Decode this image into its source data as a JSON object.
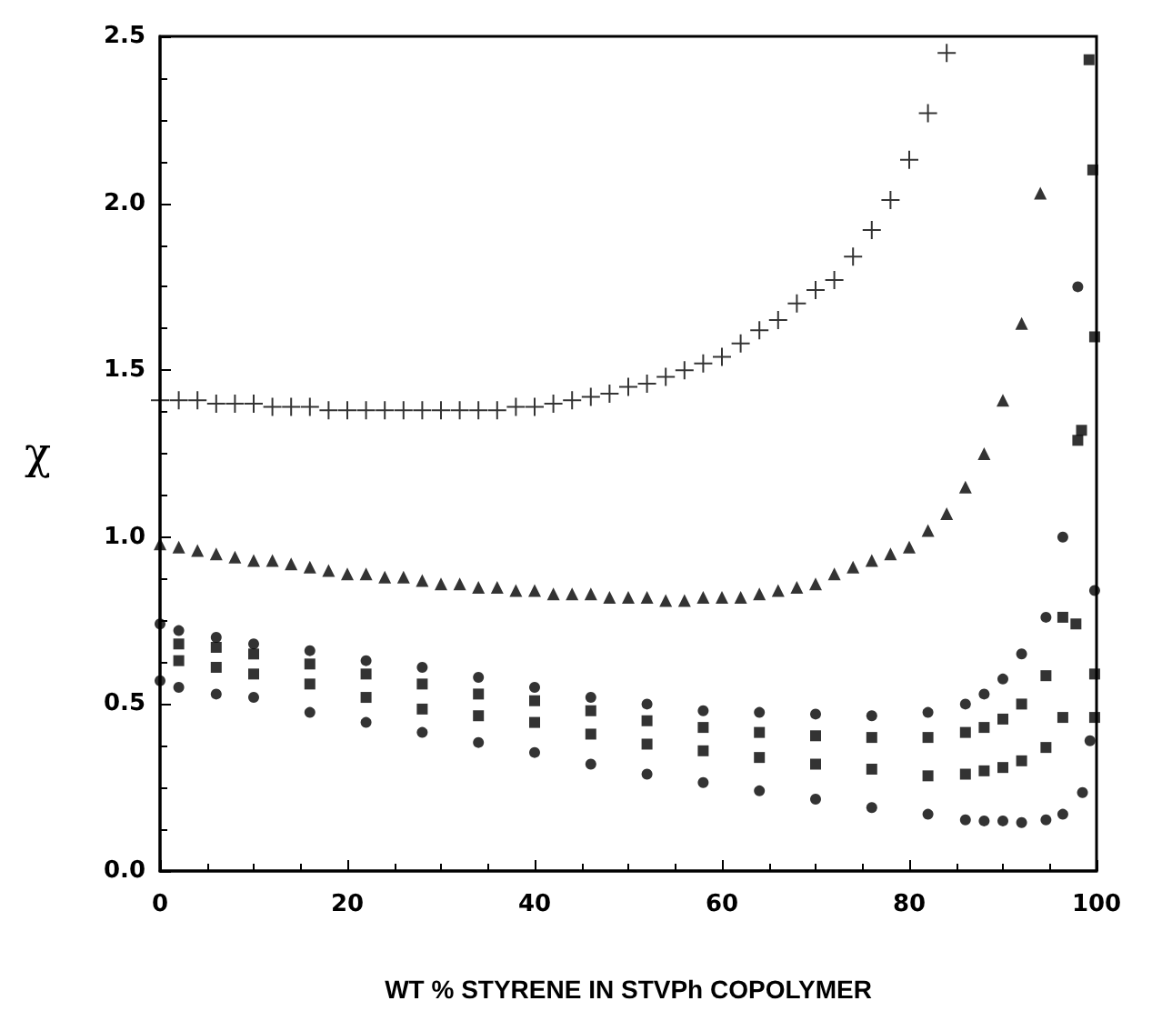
{
  "chart_data": {
    "type": "scatter",
    "xlabel": "WT % STYRENE IN STVPh COPOLYMER",
    "ylabel": "χ",
    "xlim": [
      0,
      100
    ],
    "ylim": [
      0,
      2.5
    ],
    "xticks": [
      0,
      20,
      40,
      60,
      80,
      100
    ],
    "yticks": [
      {
        "value": 0,
        "label": "0.0"
      },
      {
        "value": 0.5,
        "label": "0.5"
      },
      {
        "value": 1,
        "label": "1.0"
      },
      {
        "value": 1.5,
        "label": "1.5"
      },
      {
        "value": 2,
        "label": "2.0"
      },
      {
        "value": 2.5,
        "label": "2.5"
      }
    ],
    "grid": false,
    "series": [
      {
        "marker": "cross",
        "color": "#000000",
        "x": [
          0,
          2,
          4,
          6,
          8,
          10,
          12,
          14,
          16,
          18,
          20,
          22,
          24,
          26,
          28,
          30,
          32,
          34,
          36,
          38,
          40,
          42,
          44,
          46,
          48,
          50,
          52,
          54,
          56,
          58,
          60,
          62,
          64,
          66,
          68,
          70,
          72,
          74,
          76,
          78,
          80,
          82,
          84
        ],
        "values": [
          1.41,
          1.41,
          1.41,
          1.4,
          1.4,
          1.4,
          1.39,
          1.39,
          1.39,
          1.38,
          1.38,
          1.38,
          1.38,
          1.38,
          1.38,
          1.38,
          1.38,
          1.38,
          1.38,
          1.39,
          1.39,
          1.4,
          1.41,
          1.42,
          1.43,
          1.45,
          1.46,
          1.48,
          1.5,
          1.52,
          1.54,
          1.58,
          1.62,
          1.65,
          1.7,
          1.74,
          1.77,
          1.84,
          1.92,
          2.01,
          2.13,
          2.27,
          2.45
        ]
      },
      {
        "marker": "triangle",
        "color": "#000000",
        "x": [
          0,
          2,
          4,
          6,
          8,
          10,
          12,
          14,
          16,
          18,
          20,
          22,
          24,
          26,
          28,
          30,
          32,
          34,
          36,
          38,
          40,
          42,
          44,
          46,
          48,
          50,
          52,
          54,
          56,
          58,
          60,
          62,
          64,
          66,
          68,
          70,
          72,
          74,
          76,
          78,
          80,
          82,
          84,
          86,
          88,
          90,
          92,
          94
        ],
        "values": [
          0.98,
          0.97,
          0.96,
          0.95,
          0.94,
          0.93,
          0.93,
          0.92,
          0.91,
          0.9,
          0.89,
          0.89,
          0.88,
          0.88,
          0.87,
          0.86,
          0.86,
          0.85,
          0.85,
          0.84,
          0.84,
          0.83,
          0.83,
          0.83,
          0.82,
          0.82,
          0.82,
          0.81,
          0.81,
          0.82,
          0.82,
          0.82,
          0.83,
          0.84,
          0.85,
          0.86,
          0.89,
          0.91,
          0.93,
          0.95,
          0.97,
          1.02,
          1.07,
          1.15,
          1.25,
          1.41,
          1.64,
          2.03
        ]
      },
      {
        "marker": "circle",
        "color": "#000000",
        "x": [
          0,
          2,
          6,
          10,
          16,
          22,
          28,
          34,
          40,
          46,
          52,
          58,
          64,
          70,
          76,
          82,
          86,
          88,
          90,
          92,
          94.6,
          96.4,
          98
        ],
        "values": [
          0.74,
          0.72,
          0.7,
          0.68,
          0.66,
          0.63,
          0.61,
          0.58,
          0.55,
          0.52,
          0.5,
          0.48,
          0.475,
          0.47,
          0.465,
          0.475,
          0.5,
          0.53,
          0.575,
          0.65,
          0.76,
          1.0,
          1.75
        ]
      },
      {
        "marker": "square",
        "color": "#000000",
        "x": [
          2,
          6,
          10,
          16,
          22,
          28,
          34,
          40,
          46,
          52,
          58,
          64,
          70,
          76,
          82,
          86,
          88,
          90,
          92,
          94.6,
          96.4,
          98,
          99.2
        ],
        "values": [
          0.68,
          0.67,
          0.65,
          0.62,
          0.59,
          0.56,
          0.53,
          0.51,
          0.48,
          0.45,
          0.43,
          0.415,
          0.405,
          0.4,
          0.4,
          0.415,
          0.43,
          0.455,
          0.5,
          0.585,
          0.76,
          1.29,
          2.43
        ]
      },
      {
        "marker": "square",
        "color": "#000000",
        "x": [
          2,
          6,
          10,
          16,
          22,
          28,
          34,
          40,
          46,
          52,
          58,
          64,
          70,
          76,
          82,
          86,
          88,
          90,
          92,
          94.6,
          96.4,
          97.8,
          98.4,
          99.6,
          99.8,
          99.8,
          99.8
        ],
        "values": [
          0.63,
          0.61,
          0.59,
          0.56,
          0.52,
          0.485,
          0.465,
          0.445,
          0.41,
          0.38,
          0.36,
          0.34,
          0.32,
          0.305,
          0.285,
          0.29,
          0.3,
          0.31,
          0.33,
          0.37,
          0.46,
          0.74,
          1.32,
          2.1,
          1.6,
          0.59,
          0.46
        ]
      },
      {
        "marker": "circle",
        "color": "#000000",
        "x": [
          0,
          2,
          6,
          10,
          16,
          22,
          28,
          34,
          40,
          46,
          52,
          58,
          64,
          70,
          76,
          82,
          86,
          88,
          90,
          92,
          94.6,
          96.4,
          98.5,
          99.3,
          99.8
        ],
        "values": [
          0.57,
          0.55,
          0.53,
          0.52,
          0.475,
          0.445,
          0.415,
          0.385,
          0.355,
          0.32,
          0.29,
          0.265,
          0.24,
          0.215,
          0.19,
          0.17,
          0.153,
          0.15,
          0.15,
          0.145,
          0.153,
          0.17,
          0.235,
          0.39,
          0.84
        ]
      }
    ]
  }
}
